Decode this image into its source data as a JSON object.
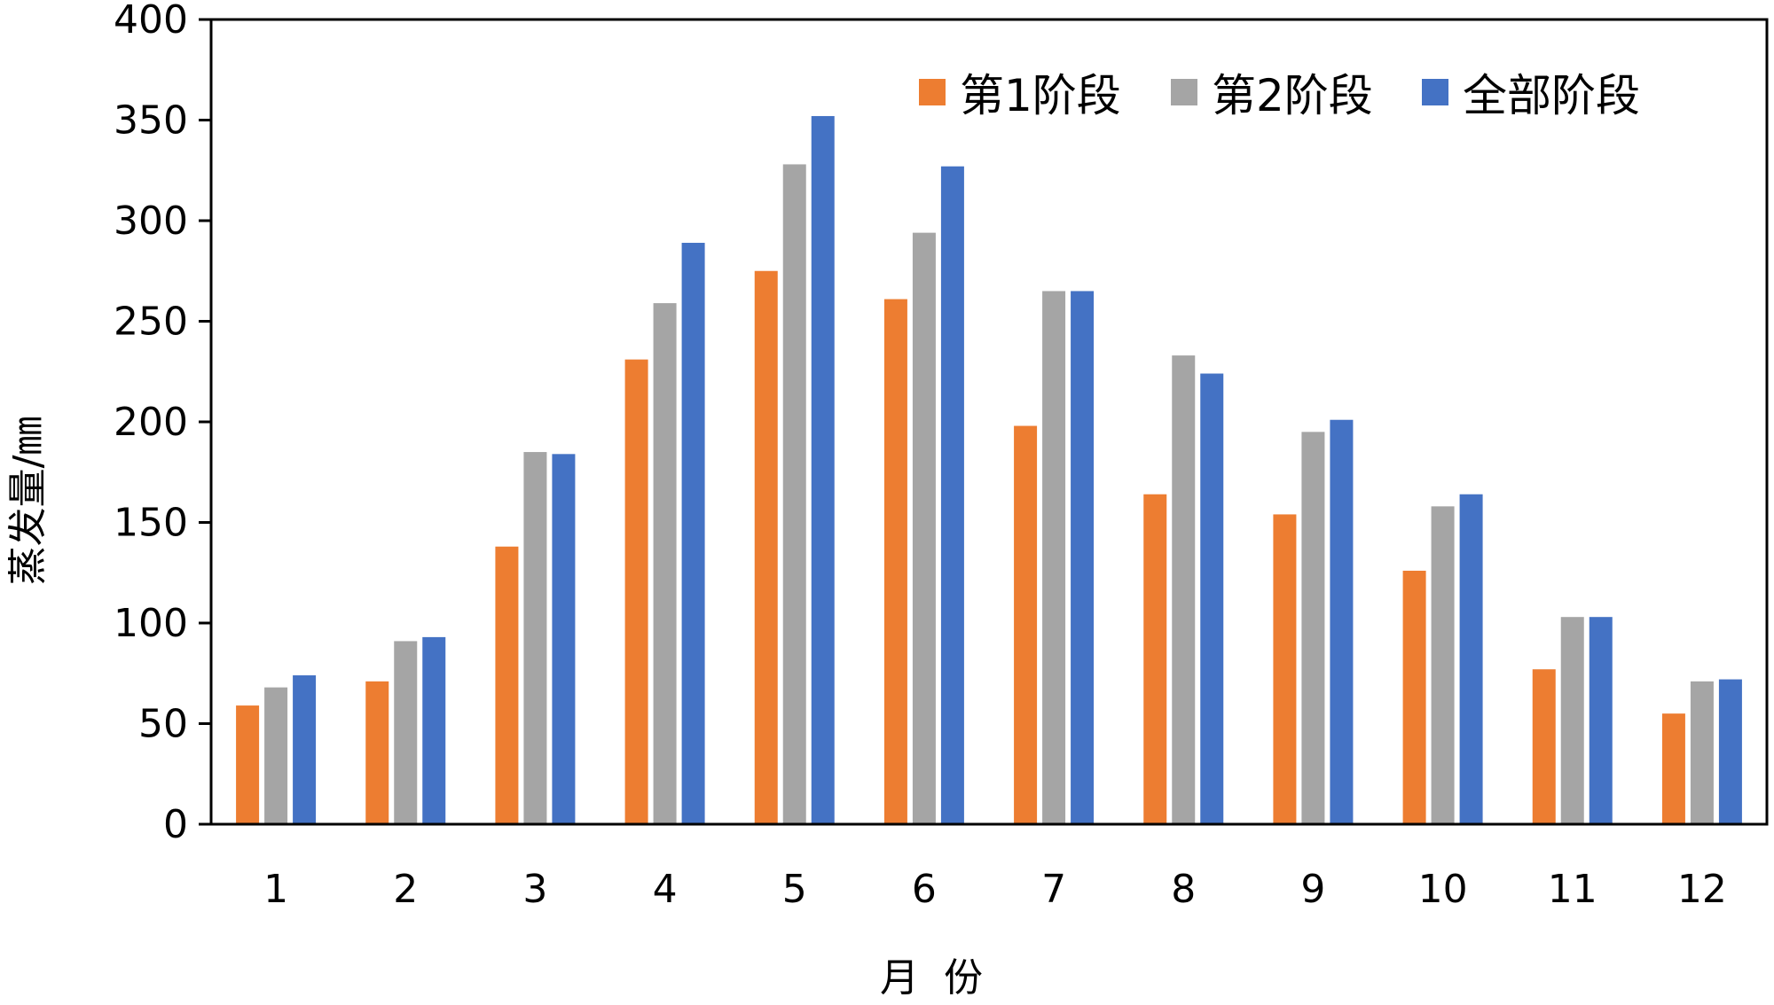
{
  "chart_data": {
    "type": "bar",
    "title": "",
    "xlabel": "月  份",
    "ylabel": "蒸发量/㎜",
    "ylim": [
      0,
      400
    ],
    "yticks": [
      0,
      50,
      100,
      150,
      200,
      250,
      300,
      350,
      400
    ],
    "grid": false,
    "legend_position": "top-right",
    "categories": [
      "1",
      "2",
      "3",
      "4",
      "5",
      "6",
      "7",
      "8",
      "9",
      "10",
      "11",
      "12"
    ],
    "series": [
      {
        "name": "第1阶段",
        "color": "#ED7D31",
        "values": [
          59,
          71,
          138,
          231,
          275,
          261,
          198,
          164,
          154,
          126,
          77,
          55
        ]
      },
      {
        "name": "第2阶段",
        "color": "#A5A5A5",
        "values": [
          68,
          91,
          185,
          259,
          328,
          294,
          265,
          233,
          195,
          158,
          103,
          71
        ]
      },
      {
        "name": "全部阶段",
        "color": "#4472C4",
        "values": [
          74,
          93,
          184,
          289,
          352,
          327,
          265,
          224,
          201,
          164,
          103,
          72
        ]
      }
    ]
  }
}
